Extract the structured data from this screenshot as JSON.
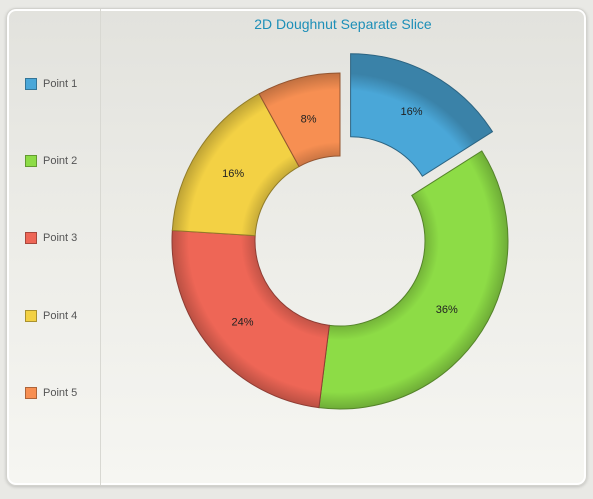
{
  "chart_data": {
    "type": "pie",
    "variant": "doughnut",
    "title": "2D Doughnut Separate Slice",
    "legend_position": "left",
    "exploded_slice": "Point 1",
    "categories": [
      "Point 1",
      "Point 2",
      "Point 3",
      "Point 4",
      "Point 5"
    ],
    "values": [
      16,
      36,
      24,
      16,
      8
    ],
    "value_labels": [
      "16%",
      "36%",
      "24%",
      "16%",
      "8%"
    ],
    "colors": [
      "#4aa7d8",
      "#8ddc46",
      "#ee6656",
      "#f3d144",
      "#f78f52"
    ]
  }
}
